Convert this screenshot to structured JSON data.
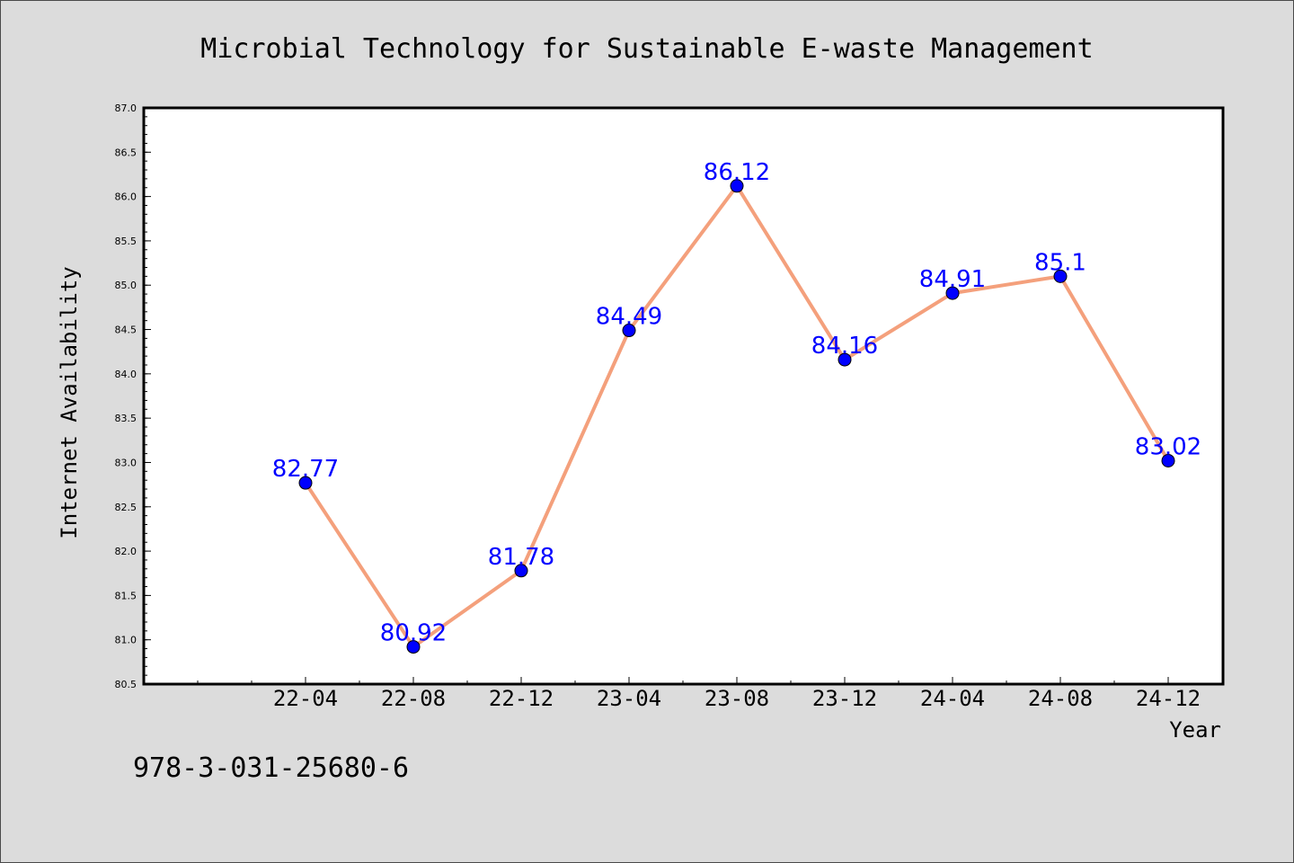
{
  "chart_data": {
    "type": "line",
    "title": "Microbial Technology for Sustainable E-waste Management",
    "xlabel": "Year",
    "ylabel": "Internet Availability",
    "categories": [
      "22-04",
      "22-08",
      "22-12",
      "23-04",
      "23-08",
      "23-12",
      "24-04",
      "24-08",
      "24-12"
    ],
    "series": [
      {
        "values": [
          82.77,
          80.92,
          81.78,
          84.49,
          86.12,
          84.16,
          84.91,
          85.1,
          83.02
        ],
        "labels": [
          "82.77",
          "80.92",
          "81.78",
          "84.49",
          "86.12",
          "84.16",
          "84.91",
          "85.1",
          "83.02"
        ]
      }
    ],
    "ylim": [
      80.5,
      87.0
    ],
    "yticks": [
      "80.5",
      "81.0",
      "81.5",
      "82.0",
      "82.5",
      "83.0",
      "83.5",
      "84.0",
      "84.5",
      "85.0",
      "85.5",
      "86.0",
      "86.5",
      "87.0"
    ],
    "line_color": "#f4a07c",
    "marker_color": "#0000ff",
    "label_color": "#0000ff",
    "background": "#dcdcdc",
    "plot_background": "#ffffff",
    "grid": false,
    "legend": "none"
  },
  "footer": {
    "isbn": "978-3-031-25680-6"
  }
}
